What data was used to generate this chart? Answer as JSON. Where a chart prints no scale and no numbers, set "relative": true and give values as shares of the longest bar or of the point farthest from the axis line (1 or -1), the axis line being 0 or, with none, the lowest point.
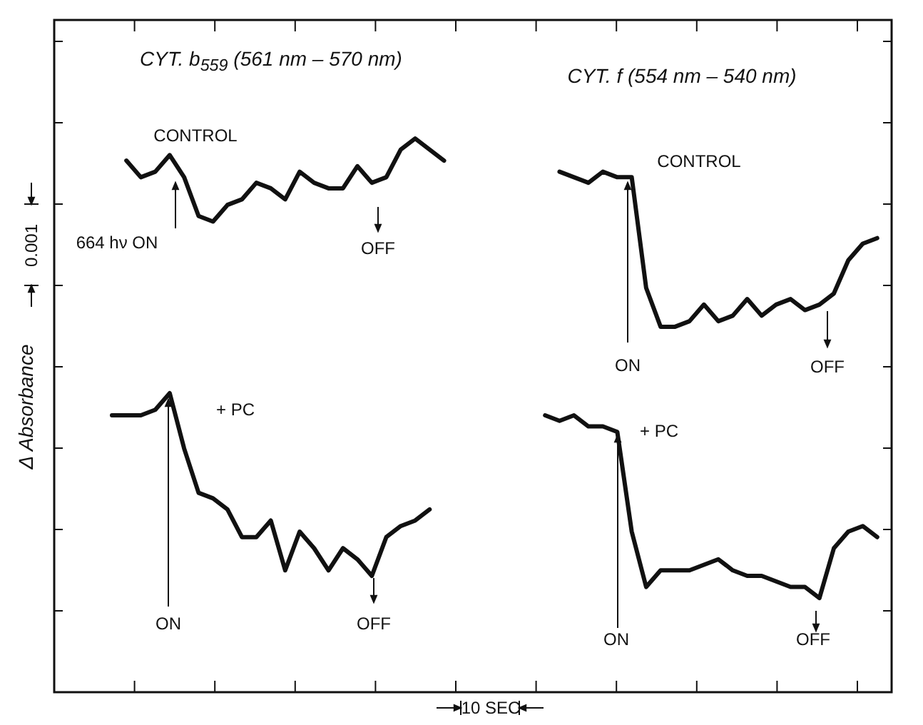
{
  "chart_data": {
    "type": "line",
    "relative": true,
    "legend": false,
    "marker": "none",
    "line_style": "solid",
    "ylabel": "Δ Absorbance",
    "annotations": [
      "CYT. b$_{559}$ (561 nm – 570 nm)",
      "CYT. f (554 nm – 540 nm)",
      "CONTROL",
      "664 hν ON",
      "OFF",
      "CONTROL",
      "ON",
      "OFF",
      "+ PC",
      "ON",
      "OFF",
      "+ PC",
      "ON",
      "OFF",
      "0.001",
      "10 SEC"
    ],
    "categories": [
      null,
      null,
      null,
      null,
      null,
      null,
      null,
      null,
      null,
      null,
      null,
      null,
      null,
      null,
      null,
      null,
      null,
      null,
      null,
      null,
      null,
      null,
      null,
      null,
      null,
      null,
      null,
      null,
      null,
      null,
      null,
      null,
      null,
      null,
      null,
      null,
      null,
      null,
      null,
      null,
      null,
      null,
      null,
      null,
      null,
      null,
      null,
      null,
      null,
      null,
      null,
      null,
      null,
      null,
      null,
      null,
      null,
      null,
      null
    ],
    "series": [
      {
        "color": "#111111",
        "values": [
          null,
          null,
          null,
          null,
          null,
          0.96,
          0.93,
          0.94,
          0.97,
          0.93,
          0.86,
          0.85,
          0.88,
          0.89,
          0.92,
          0.91,
          0.89,
          0.94,
          0.92,
          0.91,
          0.91,
          0.95,
          0.92,
          0.93,
          0.98,
          1,
          0.98,
          0.96,
          null,
          null,
          null,
          null,
          null,
          null,
          null,
          null,
          null,
          null,
          null,
          null,
          null,
          null,
          null,
          null,
          null,
          null,
          null,
          null,
          null,
          null,
          null,
          null,
          null,
          null,
          null,
          null,
          null,
          null,
          null
        ]
      },
      {
        "color": "#111111",
        "values": [
          null,
          null,
          null,
          null,
          0.5,
          0.5,
          0.5,
          0.51,
          0.54,
          0.44,
          0.36,
          0.35,
          0.33,
          0.28,
          0.28,
          0.31,
          0.22,
          0.29,
          0.26,
          0.22,
          0.26,
          0.24,
          0.21,
          0.28,
          0.3,
          0.31,
          0.33,
          null,
          null,
          null,
          null,
          null,
          null,
          null,
          null,
          null,
          null,
          null,
          null,
          null,
          null,
          null,
          null,
          null,
          null,
          null,
          null,
          null,
          null,
          null,
          null,
          null,
          null,
          null,
          null,
          null,
          null,
          null,
          null
        ]
      },
      {
        "color": "#111111",
        "values": [
          null,
          null,
          null,
          null,
          null,
          null,
          null,
          null,
          null,
          null,
          null,
          null,
          null,
          null,
          null,
          null,
          null,
          null,
          null,
          null,
          null,
          null,
          null,
          null,
          null,
          null,
          null,
          null,
          null,
          null,
          null,
          null,
          null,
          null,
          null,
          0.94,
          0.93,
          0.92,
          0.94,
          0.93,
          0.93,
          0.73,
          0.66,
          0.66,
          0.67,
          0.7,
          0.67,
          0.68,
          0.71,
          0.68,
          0.7,
          0.71,
          0.69,
          0.7,
          0.72,
          0.78,
          0.81,
          0.82,
          null
        ]
      },
      {
        "color": "#111111",
        "values": [
          null,
          null,
          null,
          null,
          null,
          null,
          null,
          null,
          null,
          null,
          null,
          null,
          null,
          null,
          null,
          null,
          null,
          null,
          null,
          null,
          null,
          null,
          null,
          null,
          null,
          null,
          null,
          null,
          null,
          null,
          null,
          null,
          null,
          null,
          0.5,
          0.49,
          0.5,
          0.48,
          0.48,
          0.47,
          0.29,
          0.19,
          0.22,
          0.22,
          0.22,
          0.23,
          0.24,
          0.22,
          0.21,
          0.21,
          0.2,
          0.19,
          0.19,
          0.17,
          0.26,
          0.29,
          0.3,
          0.28,
          null
        ]
      }
    ]
  }
}
